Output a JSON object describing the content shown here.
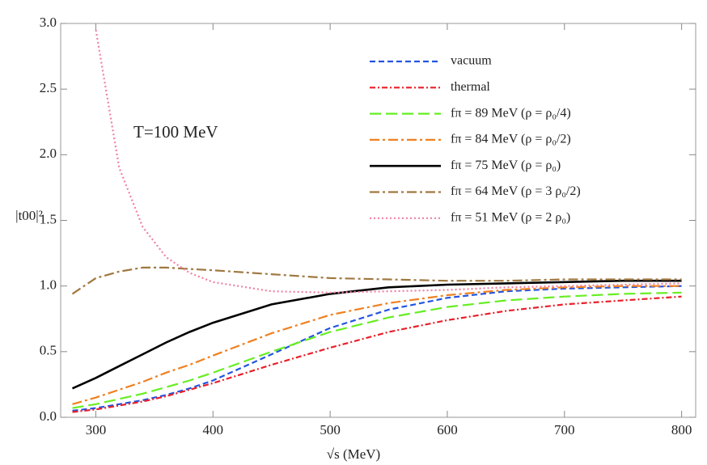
{
  "chart_data": {
    "type": "line",
    "xlabel": "√s (MeV)",
    "ylabel": "|t00|²",
    "annotation": "T=100 MeV",
    "x": [
      280,
      300,
      320,
      340,
      360,
      380,
      400,
      450,
      500,
      550,
      600,
      650,
      700,
      750,
      800
    ],
    "xlim": [
      270,
      812
    ],
    "ylim": [
      0,
      3
    ],
    "xticks": [
      300,
      400,
      500,
      600,
      700,
      800
    ],
    "yticks": [
      {
        "value": 0,
        "label": "0.0"
      },
      {
        "value": 0.5,
        "label": "0.5"
      },
      {
        "value": 1,
        "label": "1.0"
      },
      {
        "value": 1.5,
        "label": "1.5"
      },
      {
        "value": 2,
        "label": "2.0"
      },
      {
        "value": 2.5,
        "label": "2.5"
      },
      {
        "value": 3,
        "label": "3.0"
      }
    ],
    "legend": "upper right",
    "series": [
      {
        "name": "vacuum",
        "color": "#2255e0",
        "style": "dashed",
        "values": [
          0.05,
          0.07,
          0.1,
          0.13,
          0.17,
          0.22,
          0.28,
          0.48,
          0.68,
          0.82,
          0.91,
          0.96,
          0.98,
          0.99,
          1.0
        ]
      },
      {
        "name": "thermal",
        "color": "#e8202a",
        "style": "dashdot",
        "values": [
          0.04,
          0.06,
          0.09,
          0.12,
          0.16,
          0.21,
          0.26,
          0.4,
          0.53,
          0.65,
          0.74,
          0.81,
          0.86,
          0.89,
          0.92
        ]
      },
      {
        "name": "fπ = 89 MeV (ρ = ρ₀/4)",
        "color": "#66ee22",
        "style": "longdash",
        "values": [
          0.07,
          0.1,
          0.14,
          0.18,
          0.23,
          0.28,
          0.34,
          0.5,
          0.65,
          0.76,
          0.84,
          0.89,
          0.92,
          0.94,
          0.95
        ]
      },
      {
        "name": "fπ = 84 MeV (ρ = ρ₀/2)",
        "color": "#f08020",
        "style": "longdashdot",
        "values": [
          0.1,
          0.15,
          0.21,
          0.27,
          0.34,
          0.4,
          0.47,
          0.64,
          0.78,
          0.87,
          0.93,
          0.97,
          0.99,
          1.0,
          1.0
        ]
      },
      {
        "name": "fπ = 75 MeV (ρ = ρ₀)",
        "color": "#000000",
        "style": "solid",
        "values": [
          0.22,
          0.3,
          0.39,
          0.48,
          0.57,
          0.65,
          0.72,
          0.86,
          0.94,
          0.99,
          1.01,
          1.02,
          1.03,
          1.04,
          1.04
        ]
      },
      {
        "name": "fπ = 64 MeV (ρ = 3 ρ₀/2)",
        "color": "#a07840",
        "style": "longdashdot",
        "values": [
          0.94,
          1.06,
          1.11,
          1.14,
          1.14,
          1.13,
          1.12,
          1.09,
          1.06,
          1.05,
          1.04,
          1.04,
          1.05,
          1.05,
          1.05
        ]
      },
      {
        "name": "fπ = 51 MeV (ρ = 2 ρ₀)",
        "color": "#f080a0",
        "style": "dotted",
        "values": [
          null,
          2.95,
          1.9,
          1.45,
          1.22,
          1.1,
          1.03,
          0.96,
          0.95,
          0.96,
          0.97,
          0.99,
          1.0,
          1.01,
          1.02
        ]
      }
    ]
  }
}
